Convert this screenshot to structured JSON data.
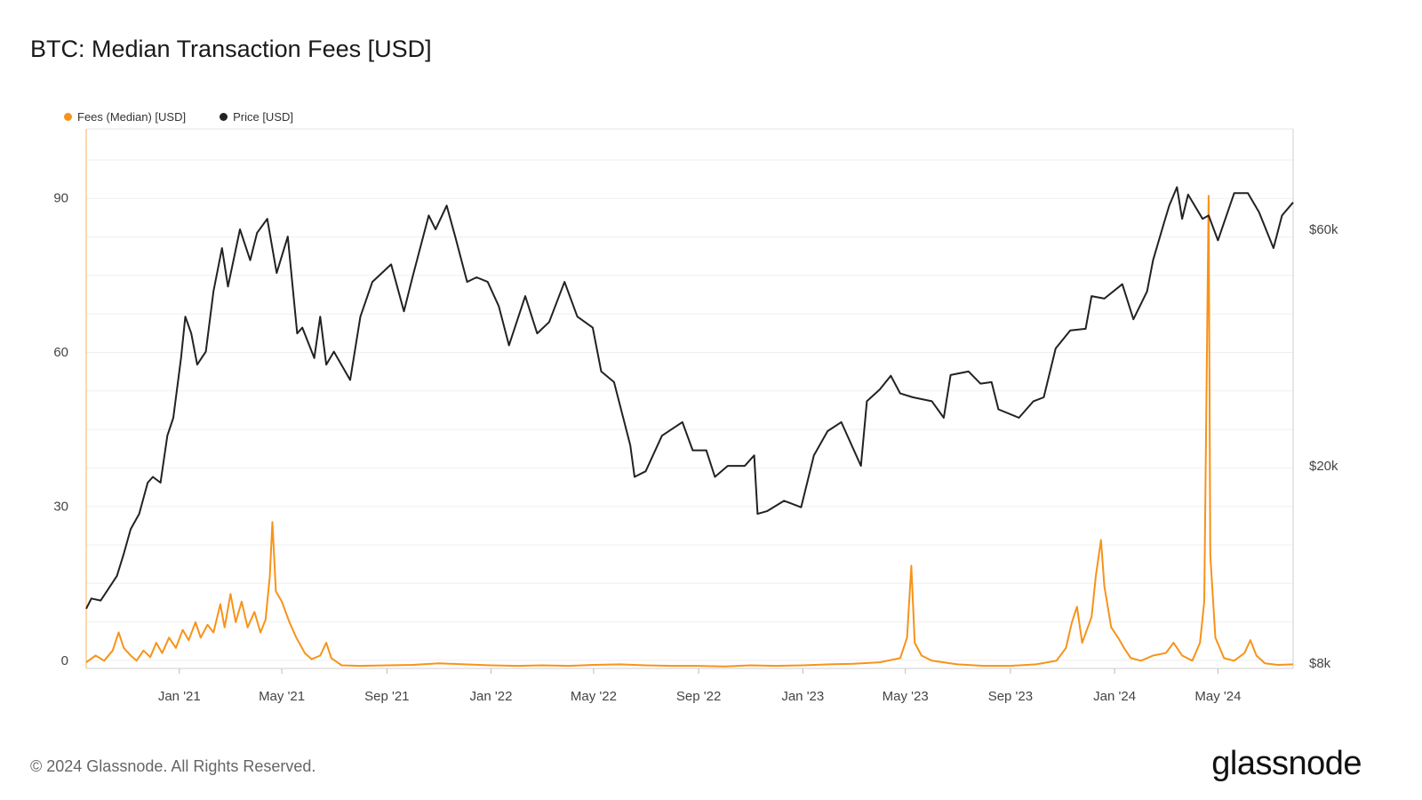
{
  "title": "BTC: Median Transaction Fees [USD]",
  "footer": "© 2024 Glassnode. All Rights Reserved.",
  "logo_text": "glassnode",
  "legend": [
    {
      "label": "Fees (Median) [USD]",
      "color": "#f7931a"
    },
    {
      "label": "Price [USD]",
      "color": "#222222"
    }
  ],
  "chart_data": {
    "type": "line",
    "x_ticks": [
      "Jan '21",
      "May '21",
      "Sep '21",
      "Jan '22",
      "May '22",
      "Sep '22",
      "Jan '23",
      "May '23",
      "Sep '23",
      "Jan '24",
      "May '24"
    ],
    "y_left_ticks": [
      "0",
      "30",
      "60",
      "90"
    ],
    "y_left_lim": [
      0,
      105
    ],
    "y_right_ticks": [
      "$8k",
      "$20k",
      "$60k"
    ],
    "y_right_scale": "log",
    "series": [
      {
        "name": "Fees (Median) [USD]",
        "axis": "left",
        "color": "#f7931a",
        "points": [
          [
            "2020-09-14",
            1.2
          ],
          [
            "2020-09-25",
            2.5
          ],
          [
            "2020-10-05",
            1.5
          ],
          [
            "2020-10-15",
            3.5
          ],
          [
            "2020-10-22",
            7.0
          ],
          [
            "2020-10-28",
            4.0
          ],
          [
            "2020-11-05",
            2.5
          ],
          [
            "2020-11-12",
            1.5
          ],
          [
            "2020-11-20",
            3.5
          ],
          [
            "2020-11-28",
            2.2
          ],
          [
            "2020-12-05",
            5.0
          ],
          [
            "2020-12-12",
            3.0
          ],
          [
            "2020-12-20",
            6.0
          ],
          [
            "2020-12-28",
            4.0
          ],
          [
            "2021-01-05",
            7.5
          ],
          [
            "2021-01-12",
            5.5
          ],
          [
            "2021-01-20",
            9.0
          ],
          [
            "2021-01-26",
            6.0
          ],
          [
            "2021-02-03",
            8.5
          ],
          [
            "2021-02-10",
            7.0
          ],
          [
            "2021-02-18",
            12.5
          ],
          [
            "2021-02-23",
            8.0
          ],
          [
            "2021-03-02",
            14.5
          ],
          [
            "2021-03-08",
            9.0
          ],
          [
            "2021-03-15",
            13.0
          ],
          [
            "2021-03-22",
            8.0
          ],
          [
            "2021-03-30",
            11.0
          ],
          [
            "2021-04-06",
            7.0
          ],
          [
            "2021-04-12",
            9.5
          ],
          [
            "2021-04-17",
            18.0
          ],
          [
            "2021-04-20",
            28.5
          ],
          [
            "2021-04-24",
            15.0
          ],
          [
            "2021-05-01",
            13.0
          ],
          [
            "2021-05-10",
            9.0
          ],
          [
            "2021-05-18",
            6.0
          ],
          [
            "2021-05-28",
            3.0
          ],
          [
            "2021-06-05",
            1.8
          ],
          [
            "2021-06-15",
            2.5
          ],
          [
            "2021-06-22",
            5.0
          ],
          [
            "2021-06-28",
            2.0
          ],
          [
            "2021-07-10",
            0.6
          ],
          [
            "2021-08-01",
            0.5
          ],
          [
            "2021-09-01",
            0.6
          ],
          [
            "2021-10-01",
            0.7
          ],
          [
            "2021-11-01",
            1.0
          ],
          [
            "2021-12-01",
            0.8
          ],
          [
            "2022-01-01",
            0.6
          ],
          [
            "2022-02-01",
            0.5
          ],
          [
            "2022-03-01",
            0.6
          ],
          [
            "2022-04-01",
            0.5
          ],
          [
            "2022-05-01",
            0.7
          ],
          [
            "2022-06-01",
            0.8
          ],
          [
            "2022-07-01",
            0.6
          ],
          [
            "2022-08-01",
            0.5
          ],
          [
            "2022-09-01",
            0.5
          ],
          [
            "2022-10-01",
            0.4
          ],
          [
            "2022-11-01",
            0.6
          ],
          [
            "2022-12-01",
            0.5
          ],
          [
            "2023-01-01",
            0.6
          ],
          [
            "2023-02-01",
            0.8
          ],
          [
            "2023-03-01",
            0.9
          ],
          [
            "2023-04-01",
            1.2
          ],
          [
            "2023-04-25",
            2.0
          ],
          [
            "2023-05-03",
            6.0
          ],
          [
            "2023-05-08",
            20.0
          ],
          [
            "2023-05-12",
            5.0
          ],
          [
            "2023-05-20",
            2.5
          ],
          [
            "2023-06-01",
            1.5
          ],
          [
            "2023-07-01",
            0.8
          ],
          [
            "2023-08-01",
            0.5
          ],
          [
            "2023-09-01",
            0.5
          ],
          [
            "2023-10-01",
            0.8
          ],
          [
            "2023-10-25",
            1.5
          ],
          [
            "2023-11-05",
            4.0
          ],
          [
            "2023-11-12",
            9.0
          ],
          [
            "2023-11-18",
            12.0
          ],
          [
            "2023-11-24",
            5.0
          ],
          [
            "2023-12-05",
            10.0
          ],
          [
            "2023-12-10",
            18.0
          ],
          [
            "2023-12-16",
            25.0
          ],
          [
            "2023-12-20",
            16.0
          ],
          [
            "2023-12-28",
            8.0
          ],
          [
            "2024-01-05",
            6.0
          ],
          [
            "2024-01-12",
            4.0
          ],
          [
            "2024-01-20",
            2.0
          ],
          [
            "2024-02-01",
            1.5
          ],
          [
            "2024-02-15",
            2.5
          ],
          [
            "2024-03-01",
            3.0
          ],
          [
            "2024-03-10",
            5.0
          ],
          [
            "2024-03-20",
            2.5
          ],
          [
            "2024-04-01",
            1.5
          ],
          [
            "2024-04-10",
            5.0
          ],
          [
            "2024-04-15",
            13.0
          ],
          [
            "2024-04-20",
            92.0
          ],
          [
            "2024-04-22",
            22.0
          ],
          [
            "2024-04-28",
            6.0
          ],
          [
            "2024-05-08",
            2.0
          ],
          [
            "2024-05-20",
            1.5
          ],
          [
            "2024-06-01",
            3.0
          ],
          [
            "2024-06-08",
            5.5
          ],
          [
            "2024-06-15",
            2.5
          ],
          [
            "2024-06-25",
            1.0
          ],
          [
            "2024-07-10",
            0.7
          ],
          [
            "2024-07-28",
            0.8
          ]
        ]
      },
      {
        "name": "Price [USD]",
        "axis": "right",
        "color": "#222222",
        "points": [
          [
            "2020-09-14",
            10300
          ],
          [
            "2020-09-20",
            10800
          ],
          [
            "2020-10-01",
            10700
          ],
          [
            "2020-10-10",
            11300
          ],
          [
            "2020-10-20",
            12000
          ],
          [
            "2020-10-28",
            13300
          ],
          [
            "2020-11-05",
            14900
          ],
          [
            "2020-11-15",
            16000
          ],
          [
            "2020-11-25",
            18500
          ],
          [
            "2020-12-01",
            19000
          ],
          [
            "2020-12-10",
            18500
          ],
          [
            "2020-12-18",
            23000
          ],
          [
            "2020-12-25",
            25000
          ],
          [
            "2021-01-03",
            33000
          ],
          [
            "2021-01-08",
            40000
          ],
          [
            "2021-01-15",
            37000
          ],
          [
            "2021-01-22",
            32000
          ],
          [
            "2021-02-01",
            34000
          ],
          [
            "2021-02-10",
            45000
          ],
          [
            "2021-02-20",
            55000
          ],
          [
            "2021-02-27",
            46000
          ],
          [
            "2021-03-13",
            60000
          ],
          [
            "2021-03-25",
            52000
          ],
          [
            "2021-04-02",
            59000
          ],
          [
            "2021-04-14",
            63000
          ],
          [
            "2021-04-25",
            49000
          ],
          [
            "2021-05-08",
            58000
          ],
          [
            "2021-05-19",
            37000
          ],
          [
            "2021-05-25",
            38000
          ],
          [
            "2021-06-08",
            33000
          ],
          [
            "2021-06-15",
            40000
          ],
          [
            "2021-06-22",
            32000
          ],
          [
            "2021-07-01",
            34000
          ],
          [
            "2021-07-20",
            29800
          ],
          [
            "2021-08-01",
            40000
          ],
          [
            "2021-08-15",
            47000
          ],
          [
            "2021-09-06",
            51000
          ],
          [
            "2021-09-21",
            41000
          ],
          [
            "2021-10-01",
            48000
          ],
          [
            "2021-10-20",
            64000
          ],
          [
            "2021-10-28",
            60000
          ],
          [
            "2021-11-10",
            67000
          ],
          [
            "2021-11-20",
            58000
          ],
          [
            "2021-12-04",
            47000
          ],
          [
            "2021-12-15",
            48000
          ],
          [
            "2021-12-28",
            47000
          ],
          [
            "2022-01-10",
            42000
          ],
          [
            "2022-01-22",
            35000
          ],
          [
            "2022-02-10",
            44000
          ],
          [
            "2022-02-24",
            37000
          ],
          [
            "2022-03-10",
            39000
          ],
          [
            "2022-03-28",
            47000
          ],
          [
            "2022-04-12",
            40000
          ],
          [
            "2022-04-30",
            38000
          ],
          [
            "2022-05-10",
            31000
          ],
          [
            "2022-05-25",
            29500
          ],
          [
            "2022-06-13",
            22000
          ],
          [
            "2022-06-18",
            19000
          ],
          [
            "2022-07-01",
            19500
          ],
          [
            "2022-07-20",
            23000
          ],
          [
            "2022-08-13",
            24500
          ],
          [
            "2022-08-25",
            21500
          ],
          [
            "2022-09-10",
            21500
          ],
          [
            "2022-09-20",
            19000
          ],
          [
            "2022-10-05",
            20000
          ],
          [
            "2022-10-25",
            20000
          ],
          [
            "2022-11-05",
            21000
          ],
          [
            "2022-11-09",
            16000
          ],
          [
            "2022-11-20",
            16200
          ],
          [
            "2022-12-10",
            17000
          ],
          [
            "2022-12-30",
            16500
          ],
          [
            "2023-01-14",
            21000
          ],
          [
            "2023-01-30",
            23500
          ],
          [
            "2023-02-15",
            24500
          ],
          [
            "2023-03-10",
            20000
          ],
          [
            "2023-03-17",
            27000
          ],
          [
            "2023-04-01",
            28500
          ],
          [
            "2023-04-14",
            30400
          ],
          [
            "2023-04-25",
            28000
          ],
          [
            "2023-05-10",
            27500
          ],
          [
            "2023-06-01",
            27000
          ],
          [
            "2023-06-15",
            25000
          ],
          [
            "2023-06-23",
            30500
          ],
          [
            "2023-07-14",
            31000
          ],
          [
            "2023-07-28",
            29300
          ],
          [
            "2023-08-10",
            29500
          ],
          [
            "2023-08-18",
            26000
          ],
          [
            "2023-09-11",
            25000
          ],
          [
            "2023-09-28",
            27000
          ],
          [
            "2023-10-10",
            27500
          ],
          [
            "2023-10-24",
            34500
          ],
          [
            "2023-11-10",
            37500
          ],
          [
            "2023-11-28",
            37800
          ],
          [
            "2023-12-05",
            44000
          ],
          [
            "2023-12-20",
            43500
          ],
          [
            "2024-01-10",
            46500
          ],
          [
            "2024-01-23",
            39500
          ],
          [
            "2024-02-08",
            45000
          ],
          [
            "2024-02-15",
            52000
          ],
          [
            "2024-02-28",
            62000
          ],
          [
            "2024-03-05",
            67000
          ],
          [
            "2024-03-14",
            73000
          ],
          [
            "2024-03-20",
            63000
          ],
          [
            "2024-03-27",
            70500
          ],
          [
            "2024-04-13",
            63000
          ],
          [
            "2024-04-20",
            64000
          ],
          [
            "2024-05-01",
            57000
          ],
          [
            "2024-05-20",
            71000
          ],
          [
            "2024-06-05",
            71000
          ],
          [
            "2024-06-18",
            65000
          ],
          [
            "2024-07-05",
            55000
          ],
          [
            "2024-07-15",
            64000
          ],
          [
            "2024-07-28",
            68000
          ]
        ]
      }
    ]
  }
}
